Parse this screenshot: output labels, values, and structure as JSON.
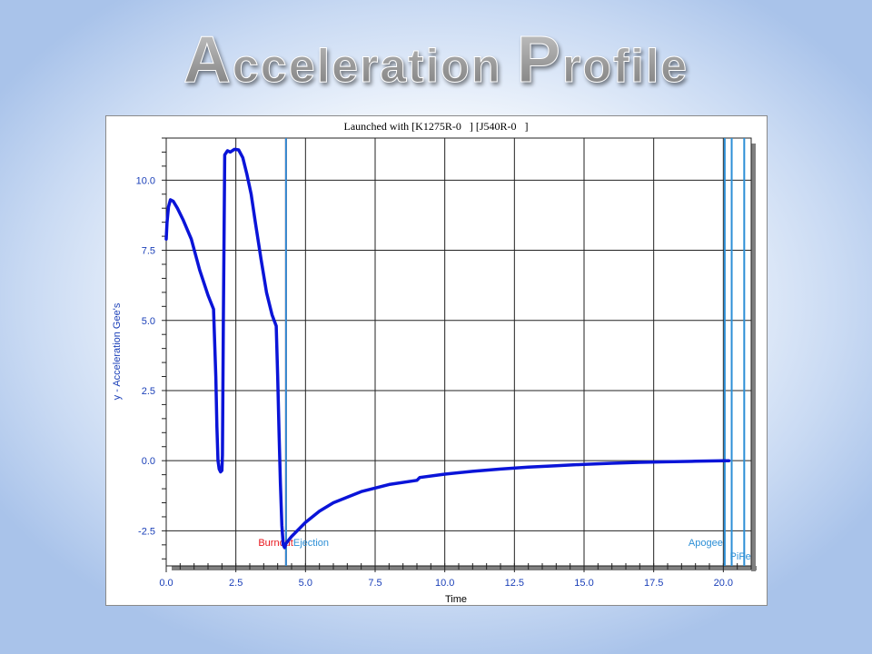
{
  "slide": {
    "title": "Acceleration Profile",
    "title_first_letters": [
      "A",
      "P"
    ],
    "title_rest": [
      "cceleration",
      "rofile"
    ]
  },
  "chart_data": {
    "type": "line",
    "title": "Launched with [K1275R-0   ] [J540R-0   ]",
    "xlabel": "Time",
    "ylabel": "y - Acceleration Gee's",
    "xlim": [
      0.0,
      21.0
    ],
    "ylim": [
      -3.75,
      11.5
    ],
    "x_ticks": [
      "0.0",
      "2.5",
      "5.0",
      "7.5",
      "10.0",
      "12.5",
      "15.0",
      "17.5",
      "20.0"
    ],
    "x_tick_values": [
      0,
      2.5,
      5,
      7.5,
      10,
      12.5,
      15,
      17.5,
      20
    ],
    "y_ticks": [
      "10.0",
      "7.5",
      "5.0",
      "2.5",
      "0.0",
      "-2.5"
    ],
    "y_tick_values": [
      10,
      7.5,
      5,
      2.5,
      0,
      -2.5
    ],
    "grid": true,
    "series": [
      {
        "color": "#0a14d8",
        "x": [
          0.0,
          0.03,
          0.08,
          0.15,
          0.25,
          0.4,
          0.6,
          0.9,
          1.2,
          1.5,
          1.7,
          1.78,
          1.82,
          1.86,
          1.9,
          1.95,
          2.0,
          2.02,
          2.05,
          2.1,
          2.2,
          2.3,
          2.45,
          2.6,
          2.75,
          2.9,
          3.05,
          3.2,
          3.4,
          3.6,
          3.8,
          3.95,
          4.0,
          4.05,
          4.1,
          4.15,
          4.2,
          4.25,
          4.3,
          4.5,
          5.0,
          5.5,
          6.0,
          7.0,
          8.0,
          9.0,
          9.1,
          10.0,
          11.0,
          12.0,
          13.0,
          14.0,
          15.0,
          16.0,
          17.0,
          18.0,
          19.0,
          20.0,
          20.2
        ],
        "y": [
          7.9,
          8.5,
          9.05,
          9.3,
          9.25,
          9.0,
          8.6,
          7.9,
          6.8,
          5.9,
          5.4,
          3.0,
          1.2,
          0.0,
          -0.3,
          -0.4,
          -0.35,
          0.2,
          5.0,
          10.9,
          11.05,
          11.0,
          11.1,
          11.08,
          10.8,
          10.2,
          9.5,
          8.5,
          7.2,
          6.0,
          5.2,
          4.8,
          3.0,
          1.0,
          -0.8,
          -2.3,
          -3.0,
          -3.1,
          -2.95,
          -2.7,
          -2.2,
          -1.8,
          -1.5,
          -1.1,
          -0.85,
          -0.7,
          -0.6,
          -0.48,
          -0.38,
          -0.3,
          -0.23,
          -0.18,
          -0.13,
          -0.09,
          -0.06,
          -0.04,
          -0.02,
          0.0,
          0.0
        ]
      }
    ],
    "events": [
      {
        "name": "Burnout",
        "label": "Burnout",
        "x": 4.3,
        "color": "#e8141b"
      },
      {
        "name": "Ejection",
        "label": "Ejection",
        "x": 4.3,
        "color": "#2d8fd6"
      },
      {
        "name": "Apogee",
        "label": "Apogee",
        "x": 20.05,
        "color": "#2d8fd6"
      },
      {
        "name": "Pi",
        "label": "Pi",
        "x": 20.3,
        "color": "#2d8fd6"
      },
      {
        "name": "Pe",
        "label": "Pe",
        "x": 20.75,
        "color": "#2d8fd6"
      }
    ],
    "colors": {
      "axis_text": "#1a3fb8",
      "grid": "#222222",
      "frame_shadow": "#808080"
    }
  }
}
